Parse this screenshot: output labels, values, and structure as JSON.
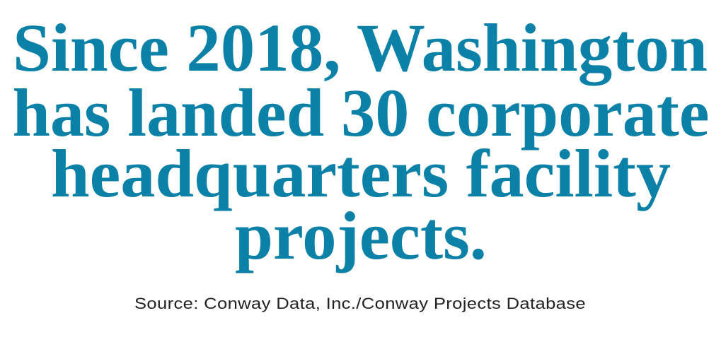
{
  "headline": {
    "lines": [
      "Since 2018, Washington",
      "has landed 30 corporate",
      "headquarters facility",
      "projects."
    ]
  },
  "source": "Source: Conway Data, Inc./Conway Projects Database"
}
